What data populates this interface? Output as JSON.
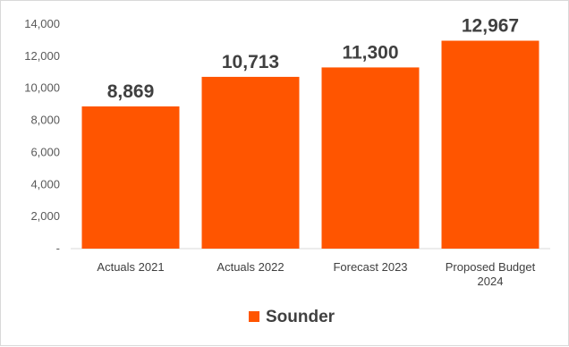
{
  "chart_data": {
    "type": "bar",
    "categories": [
      "Actuals 2021",
      "Actuals 2022",
      "Forecast 2023",
      "Proposed Budget 2024"
    ],
    "series": [
      {
        "name": "Sounder",
        "values": [
          8869,
          10713,
          11300,
          12967
        ],
        "color": "#ff5500"
      }
    ],
    "data_labels": [
      "8,869",
      "10,713",
      "11,300",
      "12,967"
    ],
    "y_ticks": [
      "-",
      "2,000",
      "4,000",
      "6,000",
      "8,000",
      "10,000",
      "12,000",
      "14,000"
    ],
    "ylim": [
      0,
      14000
    ],
    "grid": false,
    "legend_position": "bottom",
    "title": "",
    "xlabel": "",
    "ylabel": ""
  }
}
